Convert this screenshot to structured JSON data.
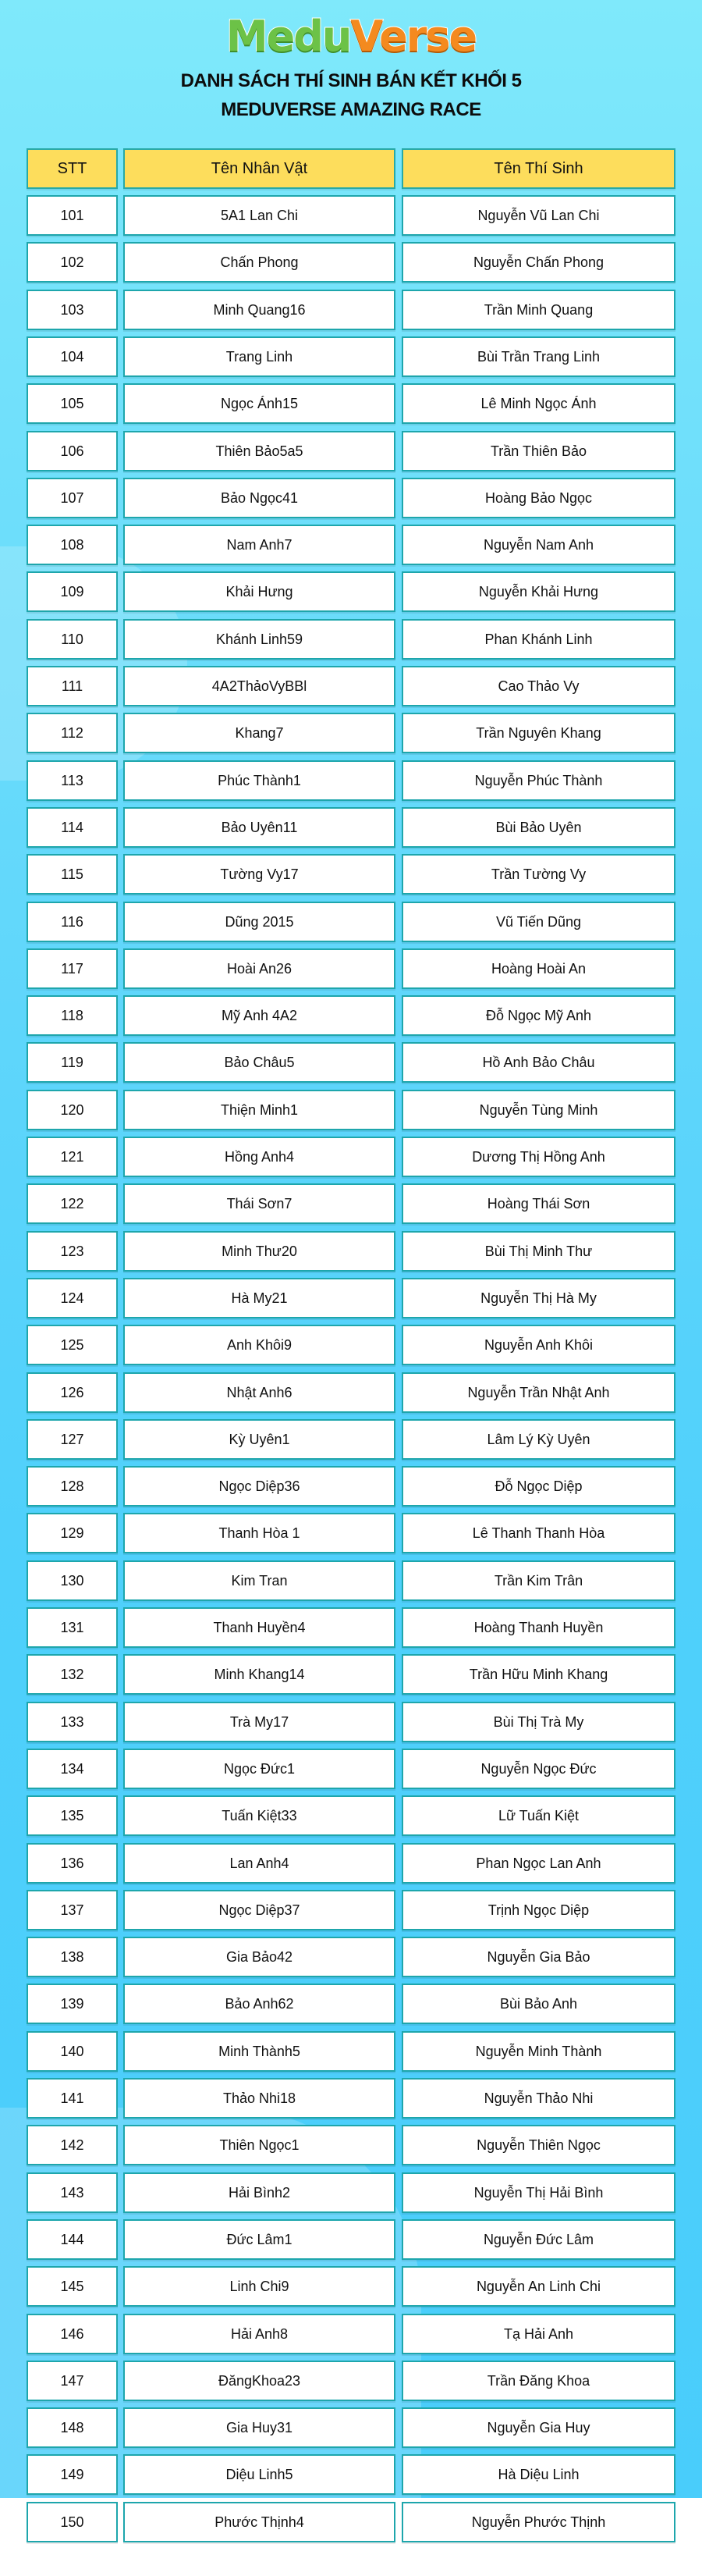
{
  "logo": {
    "part1": "Medu",
    "part2": "Verse",
    "colors": {
      "medu": "#6cc247",
      "verse": "#f48a1f"
    }
  },
  "title": {
    "line1": "DANH SÁCH THÍ SINH BÁN KẾT KHỐI 5",
    "line2": "MEDUVERSE AMAZING RACE"
  },
  "table": {
    "headers": [
      "STT",
      "Tên Nhân Vật",
      "Tên Thí Sinh"
    ],
    "header_color": "#fddd5c",
    "rows": [
      [
        "101",
        "5A1 Lan Chi",
        "Nguyễn Vũ Lan Chi"
      ],
      [
        "102",
        "Chấn Phong",
        "Nguyễn Chấn Phong"
      ],
      [
        "103",
        "Minh Quang16",
        "Trần Minh Quang"
      ],
      [
        "104",
        "Trang Linh",
        "Bùi Trần Trang Linh"
      ],
      [
        "105",
        "Ngọc Ánh15",
        "Lê Minh Ngọc Ánh"
      ],
      [
        "106",
        "Thiên Bảo5a5",
        "Trần Thiên Bảo"
      ],
      [
        "107",
        "Bảo Ngọc41",
        "Hoàng Bảo Ngọc"
      ],
      [
        "108",
        "Nam Anh7",
        "Nguyễn Nam Anh"
      ],
      [
        "109",
        "Khải Hưng",
        "Nguyễn Khải Hưng"
      ],
      [
        "110",
        "Khánh Linh59",
        "Phan Khánh Linh"
      ],
      [
        "111",
        "4A2ThảoVyBBl",
        "Cao Thảo Vy"
      ],
      [
        "112",
        "Khang7",
        "Trần Nguyên Khang"
      ],
      [
        "113",
        "Phúc Thành1",
        "Nguyễn Phúc Thành"
      ],
      [
        "114",
        "Bảo Uyên11",
        "Bùi Bảo Uyên"
      ],
      [
        "115",
        "Tường Vy17",
        "Trần Tường Vy"
      ],
      [
        "116",
        "Dũng 2015",
        "Vũ Tiến Dũng"
      ],
      [
        "117",
        "Hoài An26",
        "Hoàng Hoài An"
      ],
      [
        "118",
        "Mỹ Anh 4A2",
        "Đỗ Ngọc Mỹ Anh"
      ],
      [
        "119",
        "Bảo Châu5",
        "Hồ Anh Bảo Châu"
      ],
      [
        "120",
        "Thiện Minh1",
        "Nguyễn Tùng Minh"
      ],
      [
        "121",
        "Hồng Anh4",
        "Dương Thị Hồng Anh"
      ],
      [
        "122",
        "Thái Sơn7",
        "Hoàng Thái Sơn"
      ],
      [
        "123",
        "Minh Thư20",
        "Bùi Thị Minh Thư"
      ],
      [
        "124",
        "Hà My21",
        "Nguyễn Thị Hà My"
      ],
      [
        "125",
        "Anh Khôi9",
        "Nguyễn Anh Khôi"
      ],
      [
        "126",
        "Nhật Anh6",
        "Nguyễn Trần Nhật Anh"
      ],
      [
        "127",
        "Kỳ Uyên1",
        "Lâm Lý Kỳ Uyên"
      ],
      [
        "128",
        "Ngọc Diệp36",
        "Đỗ Ngọc Diệp"
      ],
      [
        "129",
        "Thanh Hòa 1",
        "Lê Thanh Thanh Hòa"
      ],
      [
        "130",
        "Kim Tran",
        "Trần Kim Trân"
      ],
      [
        "131",
        "Thanh Huyền4",
        "Hoàng Thanh Huyền"
      ],
      [
        "132",
        "Minh Khang14",
        "Trần Hữu Minh Khang"
      ],
      [
        "133",
        "Trà My17",
        "Bùi Thị Trà My"
      ],
      [
        "134",
        "Ngọc Đức1",
        "Nguyễn Ngọc Đức"
      ],
      [
        "135",
        "Tuấn Kiệt33",
        "Lữ Tuấn Kiệt"
      ],
      [
        "136",
        "Lan Anh4",
        "Phan Ngọc Lan Anh"
      ],
      [
        "137",
        "Ngọc Diệp37",
        "Trịnh Ngọc Diệp"
      ],
      [
        "138",
        "Gia Bảo42",
        "Nguyễn Gia Bảo"
      ],
      [
        "139",
        "Bảo Anh62",
        "Bùi Bảo Anh"
      ],
      [
        "140",
        "Minh Thành5",
        "Nguyễn Minh Thành"
      ],
      [
        "141",
        "Thảo Nhi18",
        "Nguyễn Thảo Nhi"
      ],
      [
        "142",
        "Thiên Ngọc1",
        "Nguyễn Thiên Ngọc"
      ],
      [
        "143",
        "Hải Bình2",
        "Nguyễn Thị Hải Bình"
      ],
      [
        "144",
        "Đức Lâm1",
        "Nguyễn Đức Lâm"
      ],
      [
        "145",
        "Linh Chi9",
        "Nguyễn An Linh Chi"
      ],
      [
        "146",
        "Hải Anh8",
        "Tạ Hải Anh"
      ],
      [
        "147",
        "ĐăngKhoa23",
        "Trần Đăng Khoa"
      ],
      [
        "148",
        "Gia Huy31",
        "Nguyễn Gia Huy"
      ],
      [
        "149",
        "Diệu Linh5",
        "Hà Diệu Linh"
      ],
      [
        "150",
        "Phước Thịnh4",
        "Nguyễn Phước Thịnh"
      ]
    ]
  }
}
